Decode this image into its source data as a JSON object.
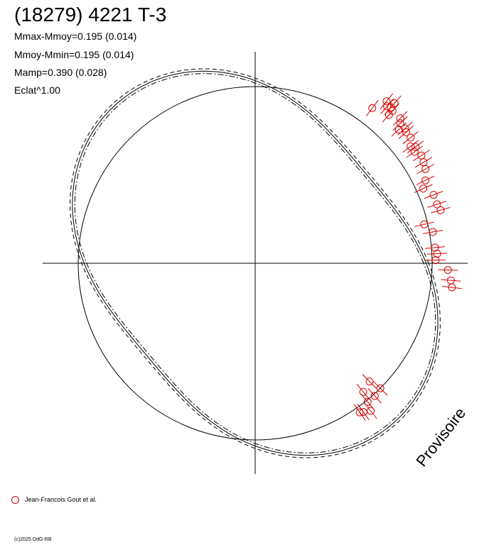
{
  "header": {
    "title": "(18279) 4221 T-3",
    "lines": [
      "Mmax-Mmoy=0.195 (0.014)",
      "Mmoy-Mmin=0.195 (0.014)",
      "Mamp=0.390 (0.028)",
      "Eclat^1.00"
    ]
  },
  "watermark": "Provisoire",
  "legend": {
    "label": "Jean-Francois Gout et al."
  },
  "copyright": "(c)2025 OdG-RB",
  "colors": {
    "observations": "#d40000",
    "lines": "#000000"
  },
  "chart_data": {
    "type": "scatter",
    "note_type": "polar lightcurve plot",
    "reference_circle_radius": 1.0,
    "fit_curves": [
      {
        "style": "solid",
        "mean": 1.0,
        "amplitude": 0.195
      },
      {
        "style": "dashed",
        "mean": 1.014,
        "amplitude": 0.195
      },
      {
        "style": "dash-dot",
        "mean": 0.986,
        "amplitude": 0.195
      }
    ],
    "fit_orientation_deg": 130,
    "points": [
      {
        "angle": 51,
        "r": 1.18
      },
      {
        "angle": 50,
        "r": 1.16
      },
      {
        "angle": 49,
        "r": 1.17
      },
      {
        "angle": 48,
        "r": 1.16
      },
      {
        "angle": 48,
        "r": 1.13
      },
      {
        "angle": 49,
        "r": 1.2
      },
      {
        "angle": 53,
        "r": 1.1
      },
      {
        "angle": 45,
        "r": 1.16
      },
      {
        "angle": 44,
        "r": 1.14
      },
      {
        "angle": 43,
        "r": 1.11
      },
      {
        "angle": 42,
        "r": 1.14
      },
      {
        "angle": 41,
        "r": 1.13
      },
      {
        "angle": 39,
        "r": 1.13
      },
      {
        "angle": 37,
        "r": 1.1
      },
      {
        "angle": 36,
        "r": 1.12
      },
      {
        "angle": 35,
        "r": 1.1
      },
      {
        "angle": 33,
        "r": 1.12
      },
      {
        "angle": 31,
        "r": 1.11
      },
      {
        "angle": 29,
        "r": 1.1
      },
      {
        "angle": 26,
        "r": 1.07
      },
      {
        "angle": 24,
        "r": 1.04
      },
      {
        "angle": 21,
        "r": 1.08
      },
      {
        "angle": 18,
        "r": 1.08
      },
      {
        "angle": 16,
        "r": 1.09
      },
      {
        "angle": 13,
        "r": 0.98
      },
      {
        "angle": 10,
        "r": 1.02
      },
      {
        "angle": 5,
        "r": 1.02
      },
      {
        "angle": 3,
        "r": 1.03
      },
      {
        "angle": 1,
        "r": 1.02
      },
      {
        "angle": -2,
        "r": 1.09
      },
      {
        "angle": -5,
        "r": 1.11
      },
      {
        "angle": -7,
        "r": 1.12
      },
      {
        "angle": -45,
        "r": 1.0
      },
      {
        "angle": -46,
        "r": 0.93
      },
      {
        "angle": -48,
        "r": 1.01
      },
      {
        "angle": -50,
        "r": 0.95
      },
      {
        "angle": -51,
        "r": 1.01
      },
      {
        "angle": -52,
        "r": 1.06
      },
      {
        "angle": -54,
        "r": 1.04
      },
      {
        "angle": -55,
        "r": 1.03
      }
    ],
    "title": "",
    "xlabel": "",
    "ylabel": "",
    "grid": false
  }
}
